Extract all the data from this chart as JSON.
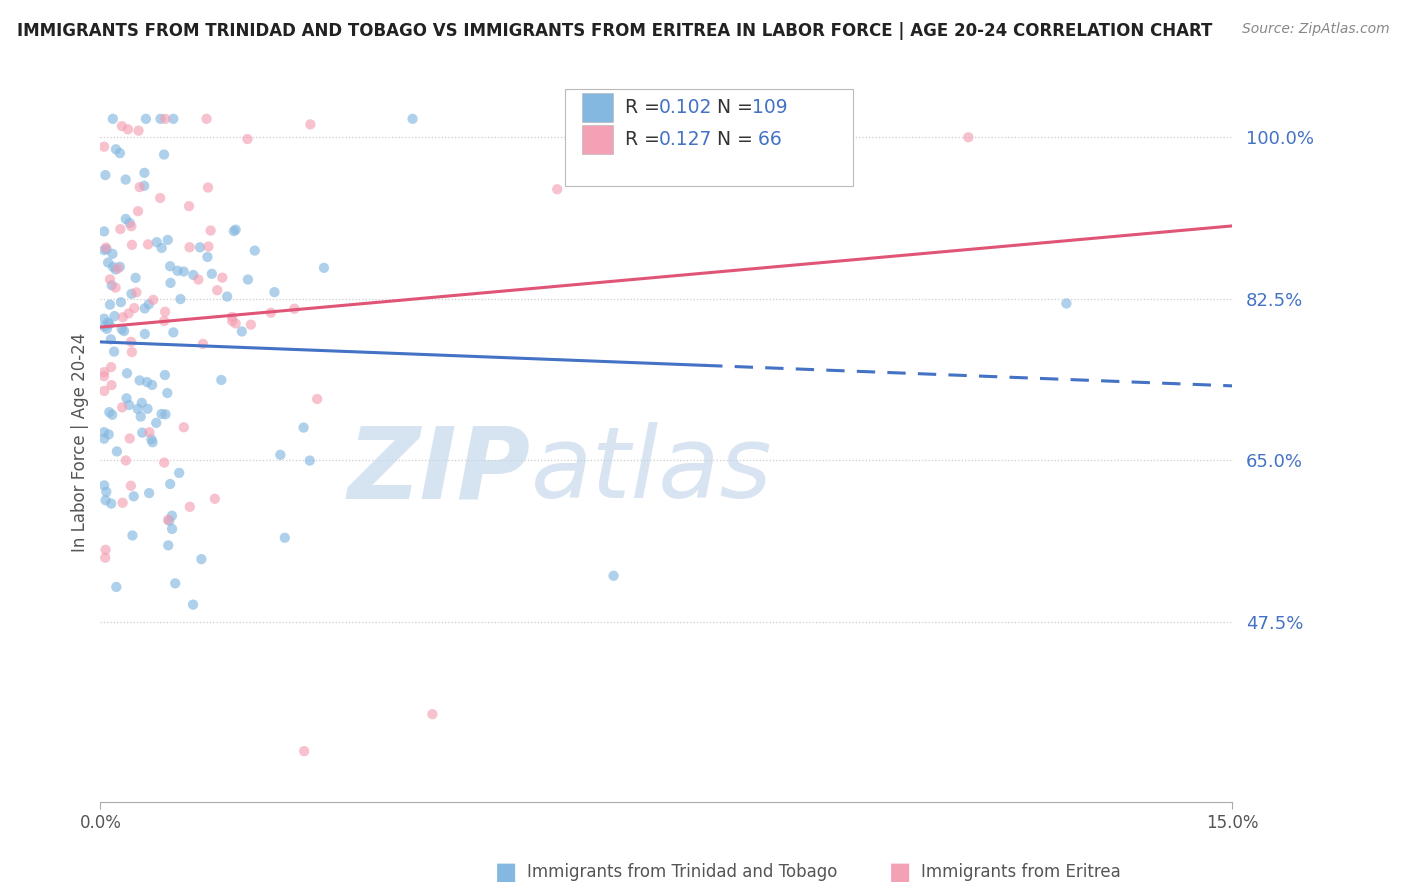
{
  "title": "IMMIGRANTS FROM TRINIDAD AND TOBAGO VS IMMIGRANTS FROM ERITREA IN LABOR FORCE | AGE 20-24 CORRELATION CHART",
  "source": "Source: ZipAtlas.com",
  "ylabel": "In Labor Force | Age 20-24",
  "xlim": [
    0.0,
    0.15
  ],
  "ylim": [
    0.28,
    1.06
  ],
  "yticks": [
    0.475,
    0.65,
    0.825,
    1.0
  ],
  "ytick_labels": [
    "47.5%",
    "65.0%",
    "82.5%",
    "100.0%"
  ],
  "xtick_labels": [
    "0.0%",
    "15.0%"
  ],
  "blue_color": "#85b8e0",
  "pink_color": "#f4a0b5",
  "trend_blue_solid": "#4472c4",
  "trend_blue_dash": "#4472c4",
  "trend_pink": "#e05575",
  "watermark_zip": "ZIP",
  "watermark_atlas": "atlas",
  "blue_R": 0.102,
  "blue_N": 109,
  "pink_R": 0.127,
  "pink_N": 66,
  "legend_text_color": "#333333",
  "legend_value_color": "#4472c4",
  "title_color": "#222222",
  "source_color": "#888888",
  "ytick_color": "#4472c4",
  "grid_color": "#cccccc",
  "dot_size": 55,
  "dot_alpha": 0.65
}
